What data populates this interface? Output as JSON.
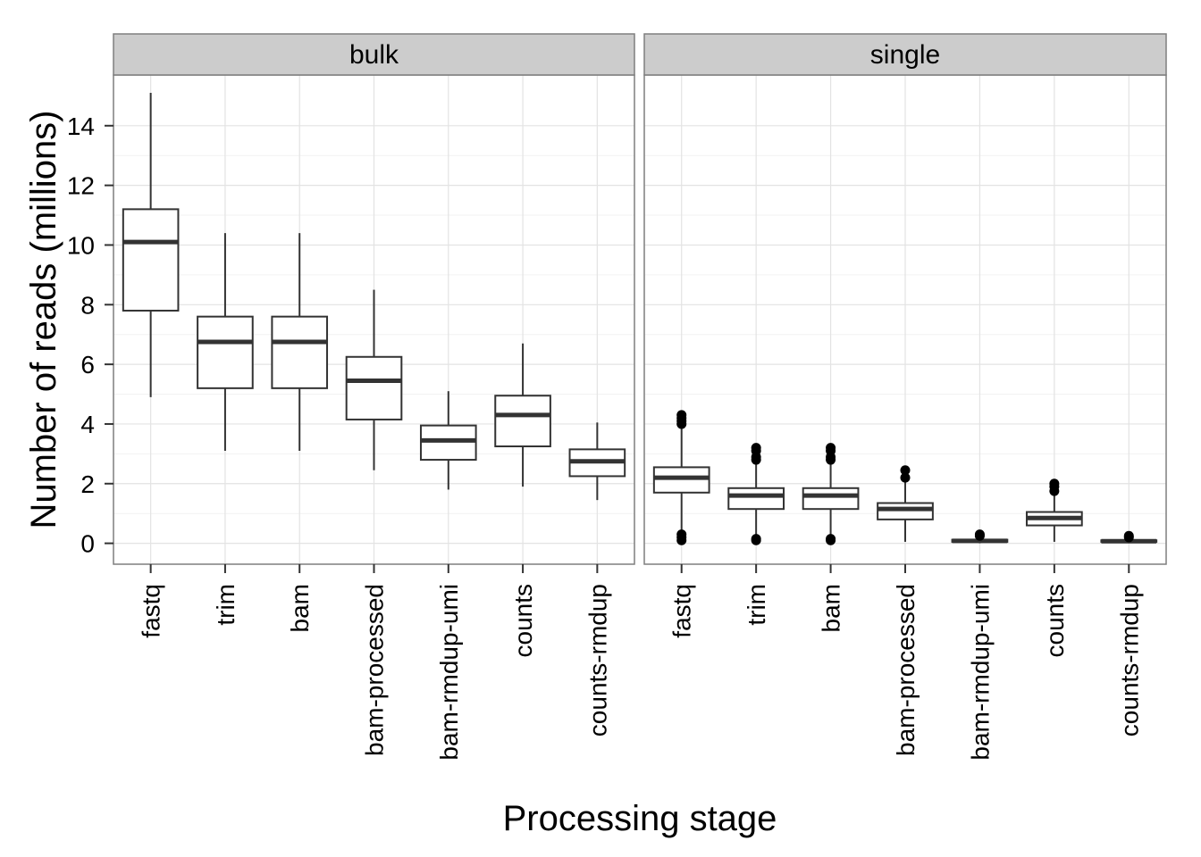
{
  "chart_data": {
    "type": "boxplot",
    "xlabel": "Processing stage",
    "ylabel": "Number of reads (millions)",
    "ylim": [
      -0.7,
      15.7
    ],
    "yticks": [
      0,
      2,
      4,
      6,
      8,
      10,
      12,
      14
    ],
    "grid": true,
    "categories": [
      "fastq",
      "trim",
      "bam",
      "bam-processed",
      "bam-rmdup-umi",
      "counts",
      "counts-rmdup"
    ],
    "panels": [
      {
        "name": "bulk",
        "boxes": [
          {
            "category": "fastq",
            "min": 4.9,
            "q1": 7.8,
            "median": 10.1,
            "q3": 11.2,
            "max": 15.1,
            "outliers": []
          },
          {
            "category": "trim",
            "min": 3.1,
            "q1": 5.2,
            "median": 6.75,
            "q3": 7.6,
            "max": 10.4,
            "outliers": []
          },
          {
            "category": "bam",
            "min": 3.1,
            "q1": 5.2,
            "median": 6.75,
            "q3": 7.6,
            "max": 10.4,
            "outliers": []
          },
          {
            "category": "bam-processed",
            "min": 2.45,
            "q1": 4.15,
            "median": 5.45,
            "q3": 6.25,
            "max": 8.5,
            "outliers": []
          },
          {
            "category": "bam-rmdup-umi",
            "min": 1.8,
            "q1": 2.8,
            "median": 3.45,
            "q3": 3.95,
            "max": 5.1,
            "outliers": []
          },
          {
            "category": "counts",
            "min": 1.9,
            "q1": 3.25,
            "median": 4.3,
            "q3": 4.95,
            "max": 6.7,
            "outliers": []
          },
          {
            "category": "counts-rmdup",
            "min": 1.45,
            "q1": 2.25,
            "median": 2.75,
            "q3": 3.15,
            "max": 4.05,
            "outliers": []
          }
        ]
      },
      {
        "name": "single",
        "boxes": [
          {
            "category": "fastq",
            "min": 0.35,
            "q1": 1.7,
            "median": 2.2,
            "q3": 2.55,
            "max": 3.85,
            "outliers": [
              0.1,
              0.2,
              0.3,
              4.0,
              4.1,
              4.2,
              4.3
            ]
          },
          {
            "category": "trim",
            "min": 0.2,
            "q1": 1.15,
            "median": 1.6,
            "q3": 1.85,
            "max": 2.7,
            "outliers": [
              0.1,
              0.15,
              2.8,
              2.9,
              3.1,
              3.2
            ]
          },
          {
            "category": "bam",
            "min": 0.2,
            "q1": 1.15,
            "median": 1.6,
            "q3": 1.85,
            "max": 2.7,
            "outliers": [
              0.1,
              0.15,
              2.8,
              2.9,
              3.1,
              3.2
            ]
          },
          {
            "category": "bam-processed",
            "min": 0.05,
            "q1": 0.8,
            "median": 1.15,
            "q3": 1.35,
            "max": 2.05,
            "outliers": [
              2.2,
              2.45
            ]
          },
          {
            "category": "bam-rmdup-umi",
            "min": 0.0,
            "q1": 0.05,
            "median": 0.08,
            "q3": 0.12,
            "max": 0.2,
            "outliers": [
              0.25,
              0.3
            ]
          },
          {
            "category": "counts",
            "min": 0.05,
            "q1": 0.6,
            "median": 0.85,
            "q3": 1.05,
            "max": 1.65,
            "outliers": [
              1.75,
              1.9,
              2.0
            ]
          },
          {
            "category": "counts-rmdup",
            "min": 0.0,
            "q1": 0.05,
            "median": 0.07,
            "q3": 0.1,
            "max": 0.15,
            "outliers": [
              0.2,
              0.25
            ]
          }
        ]
      }
    ]
  }
}
